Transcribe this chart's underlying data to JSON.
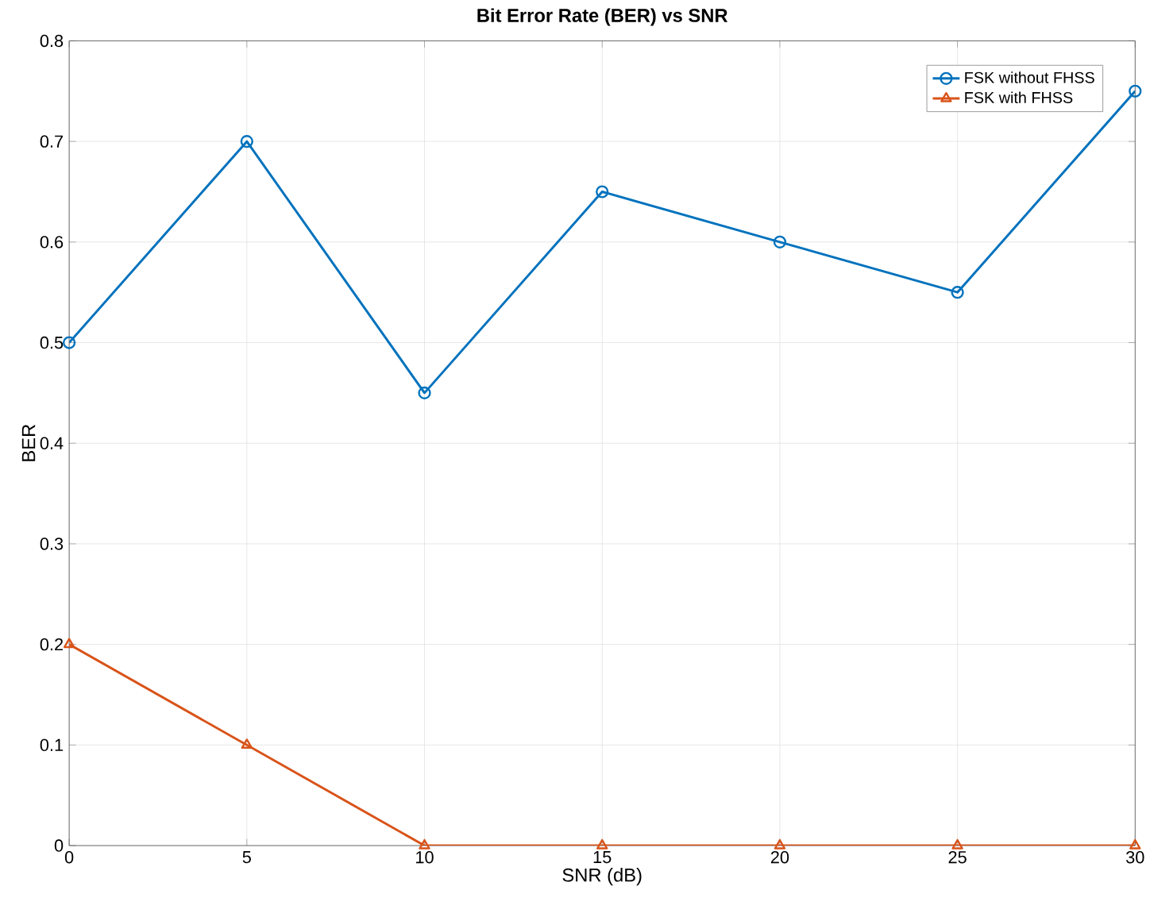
{
  "chart_data": {
    "type": "line",
    "title": "Bit Error Rate (BER) vs SNR",
    "xlabel": "SNR (dB)",
    "ylabel": "BER",
    "x": [
      0,
      5,
      10,
      15,
      20,
      25,
      30
    ],
    "series": [
      {
        "name": "FSK without FHSS",
        "color": "#0072bd",
        "marker": "circle",
        "values": [
          0.5,
          0.7,
          0.45,
          0.65,
          0.6,
          0.55,
          0.75
        ]
      },
      {
        "name": "FSK with FHSS",
        "color": "#d95319",
        "marker": "triangle",
        "values": [
          0.2,
          0.1,
          0,
          0,
          0,
          0,
          0
        ]
      }
    ],
    "xlim": [
      0,
      30
    ],
    "ylim": [
      0,
      0.8
    ],
    "xticks": [
      0,
      5,
      10,
      15,
      20,
      25,
      30
    ],
    "yticks": [
      0,
      0.1,
      0.2,
      0.3,
      0.4,
      0.5,
      0.6,
      0.7,
      0.8
    ],
    "grid": true,
    "legend": "top right",
    "line_style": "solid"
  }
}
